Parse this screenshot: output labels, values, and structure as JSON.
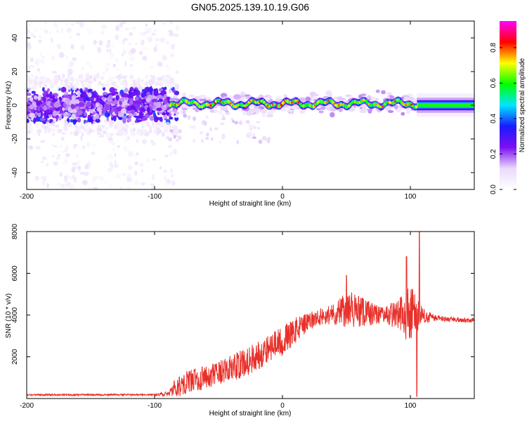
{
  "title": "GN05.2025.139.10.19.G06",
  "chart_data": [
    {
      "type": "heatmap",
      "title": "GN05.2025.139.10.19.G06",
      "xlabel": "Height of straight line (km)",
      "ylabel": "Frequency (Hz)",
      "xlim": [
        -200,
        150
      ],
      "ylim": [
        -50,
        50
      ],
      "x_ticks": [
        -200,
        -100,
        0,
        100
      ],
      "x_tick_labels": [
        "-200",
        "-100",
        "0",
        "100"
      ],
      "y_ticks": [
        -40,
        -20,
        0,
        20,
        40
      ],
      "y_tick_labels": [
        "-40",
        "-20",
        "0",
        "20",
        "40"
      ],
      "colorbar": {
        "label": "Normalized spectral amplitude",
        "range": [
          0,
          0.95
        ],
        "ticks": [
          0.0,
          0.2,
          0.4,
          0.6,
          0.8
        ],
        "tick_labels": [
          "0.0",
          "0.2",
          "0.4",
          "0.6",
          "0.8"
        ],
        "colormap": [
          "#ffffff",
          "#ead9fb",
          "#7b10f0",
          "#1a1aff",
          "#00e5ff",
          "#00ff00",
          "#ffff00",
          "#ff0000",
          "#ff00ff"
        ]
      },
      "features": [
        {
          "region": "noise",
          "x_range": [
            -200,
            -88
          ],
          "freq_spread_hz": 50,
          "peak_amplitude": 0.3
        },
        {
          "region": "signal",
          "x_range": [
            -88,
            105
          ],
          "center_freq_hz": 1,
          "peak_amplitude": 0.9
        },
        {
          "region": "tail",
          "x_range": [
            105,
            150
          ],
          "center_freq_hz": 0,
          "peak_amplitude": 0.6
        }
      ]
    },
    {
      "type": "line",
      "xlabel": "Height of straight line (km)",
      "ylabel": "SNR (10 * v/v)",
      "xlim": [
        -200,
        150
      ],
      "ylim": [
        0,
        8000
      ],
      "x_ticks": [
        -200,
        -100,
        0,
        100
      ],
      "x_tick_labels": [
        "-200",
        "-100",
        "0",
        "100"
      ],
      "y_ticks": [
        2000,
        4000,
        6000,
        8000
      ],
      "y_tick_labels": [
        "2000",
        "4000",
        "6000",
        "8000"
      ],
      "line_color": "#e8302a",
      "envelope": {
        "x": [
          -200,
          -100,
          -90,
          -80,
          -70,
          -60,
          -50,
          -40,
          -30,
          -20,
          -10,
          0,
          10,
          20,
          30,
          40,
          50,
          60,
          70,
          80,
          90,
          100,
          110,
          120,
          130,
          150
        ],
        "y": [
          180,
          180,
          220,
          700,
          900,
          1000,
          1200,
          1450,
          1700,
          2050,
          2450,
          2750,
          3250,
          3650,
          3950,
          4050,
          4300,
          4150,
          4050,
          4000,
          4050,
          4000,
          3950,
          3850,
          3800,
          3750
        ],
        "amplitude": [
          40,
          40,
          120,
          600,
          550,
          550,
          600,
          650,
          700,
          700,
          700,
          700,
          650,
          450,
          400,
          500,
          900,
          800,
          550,
          350,
          800,
          1500,
          350,
          150,
          120,
          120
        ]
      },
      "peaks": [
        {
          "x": 107,
          "y": 8000
        },
        {
          "x": 97,
          "y": 6800
        },
        {
          "x": 50,
          "y": 5900
        },
        {
          "x": 105,
          "y": 100
        }
      ]
    }
  ]
}
